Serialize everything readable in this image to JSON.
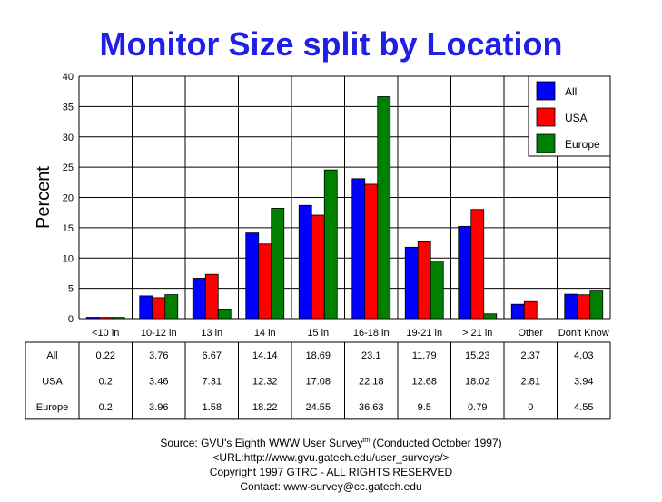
{
  "chart_data": {
    "type": "bar",
    "title": "Monitor Size split by Location",
    "ylabel": "Percent",
    "ylim": [
      0,
      40
    ],
    "yticks": [
      0,
      5,
      10,
      15,
      20,
      25,
      30,
      35,
      40
    ],
    "grid": true,
    "legend_position": "top-right",
    "categories": [
      "<10 in",
      "10-12 in",
      "13 in",
      "14 in",
      "15 in",
      "16-18 in",
      "19-21 in",
      "> 21 in",
      "Other",
      "Don't Know"
    ],
    "series": [
      {
        "name": "All",
        "color": "#0000ff",
        "values": [
          0.22,
          3.76,
          6.67,
          14.14,
          18.69,
          23.1,
          11.79,
          15.23,
          2.37,
          4.03
        ]
      },
      {
        "name": "USA",
        "color": "#ff0000",
        "values": [
          0.2,
          3.46,
          7.31,
          12.32,
          17.08,
          22.18,
          12.68,
          18.02,
          2.81,
          3.94
        ]
      },
      {
        "name": "Europe",
        "color": "#008000",
        "values": [
          0.2,
          3.96,
          1.58,
          18.22,
          24.55,
          36.63,
          9.5,
          0.79,
          0,
          4.55
        ]
      }
    ]
  },
  "source": {
    "line1_pre": "Source: GVU's Eighth WWW User Survey",
    "line1_sup": "tm",
    "line1_post": " (Conducted October 1997)",
    "line2": "<URL:http://www.gvu.gatech.edu/user_surveys/>",
    "line3": "Copyright 1997 GTRC - ALL RIGHTS RESERVED",
    "line4": "Contact: www-survey@cc.gatech.edu"
  }
}
